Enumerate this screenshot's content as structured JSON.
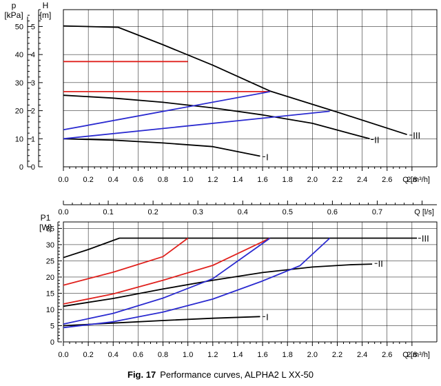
{
  "caption": {
    "label": "Fig. 17",
    "text": "Performance curves, ALPHA2 L XX-50"
  },
  "colors": {
    "black": "#000000",
    "red": "#e0201c",
    "blue": "#2a2ad0",
    "grid": "#000000"
  },
  "chart_data": [
    {
      "type": "line",
      "title": "",
      "xlabel": "Q [m³/h]",
      "ylabel": "H [m]",
      "y2label_lines": [
        "p",
        "[kPa]"
      ],
      "ylabel_lines": [
        "H",
        "[m]"
      ],
      "xlim": [
        0,
        3.0
      ],
      "ylim": [
        0,
        5.6
      ],
      "y2lim": [
        0,
        56
      ],
      "grid": true,
      "x_ticks": [
        "0.0",
        "0.2",
        "0.4",
        "0.6",
        "0.8",
        "1.0",
        "1.2",
        "1.4",
        "1.6",
        "1.8",
        "2.0",
        "2.2",
        "2.4",
        "2.6",
        "2.8"
      ],
      "y_ticks": [
        "0",
        "1",
        "2",
        "3",
        "4",
        "5"
      ],
      "y2_ticks": [
        "0",
        "10",
        "20",
        "30",
        "40",
        "50"
      ],
      "series": [
        {
          "name": "III",
          "color": "black",
          "points": [
            [
              0,
              5.02
            ],
            [
              0.44,
              4.97
            ],
            [
              0.8,
              4.35
            ],
            [
              1.2,
              3.62
            ],
            [
              1.66,
              2.7
            ],
            [
              2.2,
              1.95
            ],
            [
              2.76,
              1.15
            ]
          ]
        },
        {
          "name": "II",
          "color": "black",
          "points": [
            [
              0,
              2.55
            ],
            [
              0.4,
              2.45
            ],
            [
              0.8,
              2.3
            ],
            [
              1.2,
              2.1
            ],
            [
              1.6,
              1.85
            ],
            [
              2.0,
              1.55
            ],
            [
              2.46,
              1.0
            ]
          ]
        },
        {
          "name": "I",
          "color": "black",
          "points": [
            [
              0,
              1.0
            ],
            [
              0.4,
              0.95
            ],
            [
              0.8,
              0.85
            ],
            [
              1.2,
              0.72
            ],
            [
              1.58,
              0.38
            ]
          ]
        },
        {
          "name": "",
          "color": "red",
          "points": [
            [
              0,
              3.75
            ],
            [
              1.0,
              3.75
            ]
          ]
        },
        {
          "name": "",
          "color": "red",
          "points": [
            [
              0,
              2.68
            ],
            [
              1.66,
              2.68
            ]
          ]
        },
        {
          "name": "",
          "color": "blue",
          "points": [
            [
              0,
              1.32
            ],
            [
              1.66,
              2.68
            ]
          ]
        },
        {
          "name": "",
          "color": "blue",
          "points": [
            [
              0,
              1.0
            ],
            [
              2.14,
              1.98
            ]
          ]
        }
      ],
      "curve_labels": [
        {
          "text": "III",
          "x": 2.78,
          "y": 1.13
        },
        {
          "text": "II",
          "x": 2.47,
          "y": 0.97
        },
        {
          "text": "I",
          "x": 1.6,
          "y": 0.36
        }
      ]
    },
    {
      "type": "axis",
      "xlabel": "Q [l/s]",
      "xlim": [
        0,
        0.833
      ],
      "x_ticks": [
        "0.0",
        "0.1",
        "0.2",
        "0.3",
        "0.4",
        "0.5",
        "0.6",
        "0.7"
      ]
    },
    {
      "type": "line",
      "title": "",
      "xlabel": "Q [m³/h]",
      "ylabel_lines": [
        "P1",
        "[W]"
      ],
      "xlim": [
        0,
        3.0
      ],
      "ylim": [
        0,
        37
      ],
      "grid": true,
      "x_ticks": [
        "0.0",
        "0.2",
        "0.4",
        "0.6",
        "0.8",
        "1.0",
        "1.2",
        "1.4",
        "1.6",
        "1.8",
        "2.0",
        "2.2",
        "2.4",
        "2.6",
        "2.8"
      ],
      "y_ticks": [
        "0",
        "5",
        "10",
        "15",
        "20",
        "25",
        "30",
        "35"
      ],
      "series": [
        {
          "name": "III",
          "color": "black",
          "points": [
            [
              0,
              26
            ],
            [
              0.2,
              28.5
            ],
            [
              0.45,
              32
            ],
            [
              2.84,
              32
            ]
          ]
        },
        {
          "name": "II",
          "color": "black",
          "points": [
            [
              0,
              11
            ],
            [
              0.4,
              13.4
            ],
            [
              0.8,
              16.3
            ],
            [
              1.2,
              19
            ],
            [
              1.6,
              21.4
            ],
            [
              2.0,
              23.1
            ],
            [
              2.3,
              23.8
            ],
            [
              2.48,
              24
            ]
          ]
        },
        {
          "name": "I",
          "color": "black",
          "points": [
            [
              0,
              5.0
            ],
            [
              0.4,
              5.8
            ],
            [
              0.8,
              6.6
            ],
            [
              1.2,
              7.3
            ],
            [
              1.58,
              7.8
            ]
          ]
        },
        {
          "name": "",
          "color": "red",
          "points": [
            [
              0,
              17.5
            ],
            [
              0.4,
              21.5
            ],
            [
              0.8,
              26.3
            ],
            [
              1.0,
              32
            ]
          ]
        },
        {
          "name": "",
          "color": "red",
          "points": [
            [
              0,
              11.7
            ],
            [
              0.4,
              14.8
            ],
            [
              0.8,
              19
            ],
            [
              1.2,
              23.6
            ],
            [
              1.66,
              32
            ]
          ]
        },
        {
          "name": "",
          "color": "blue",
          "points": [
            [
              0,
              5.5
            ],
            [
              0.4,
              8.8
            ],
            [
              0.8,
              13.5
            ],
            [
              1.2,
              19.5
            ],
            [
              1.66,
              32
            ]
          ]
        },
        {
          "name": "",
          "color": "blue",
          "points": [
            [
              0,
              4.4
            ],
            [
              0.4,
              6.2
            ],
            [
              0.8,
              9.2
            ],
            [
              1.2,
              13.2
            ],
            [
              1.6,
              18.8
            ],
            [
              1.9,
              23.5
            ],
            [
              2.14,
              32
            ]
          ]
        }
      ],
      "curve_labels": [
        {
          "text": "III",
          "x": 2.85,
          "y": 32
        },
        {
          "text": "II",
          "x": 2.5,
          "y": 24.2
        },
        {
          "text": "I",
          "x": 1.6,
          "y": 7.8
        }
      ]
    }
  ]
}
